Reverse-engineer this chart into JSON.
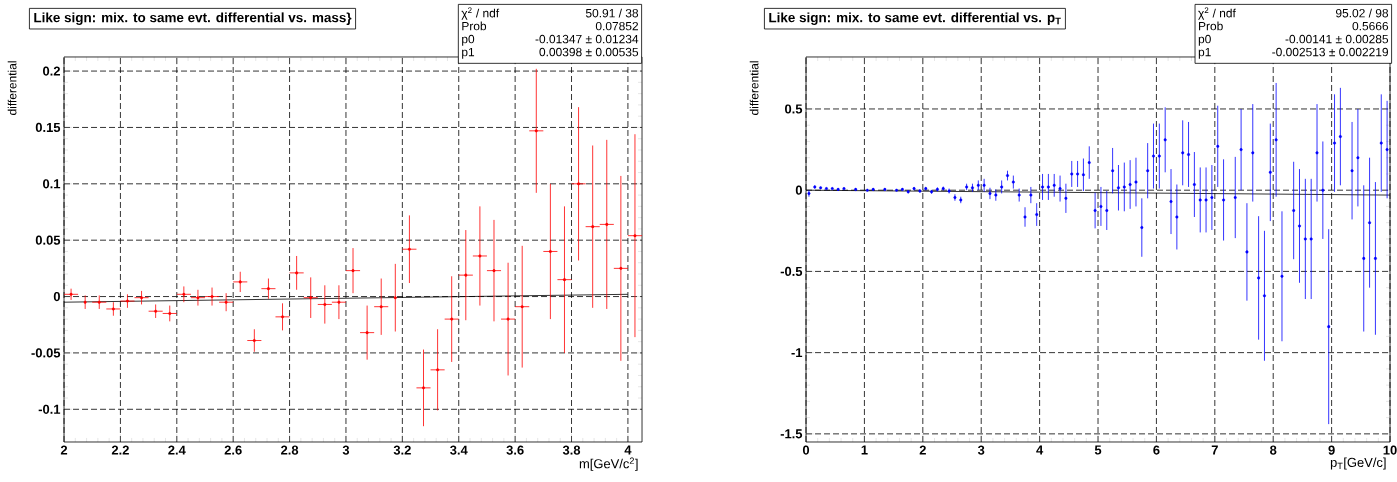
{
  "chart_data": [
    {
      "type": "scatter",
      "title": "Like sign: mix. to same evt. differential vs. mass}",
      "xlabel": "m[GeV/c$^{2}$]",
      "ylabel": "differential",
      "xlim": [
        2,
        4.05
      ],
      "ylim": [
        -0.129,
        0.2125
      ],
      "xticks": [
        2,
        2.2,
        2.4,
        2.6,
        2.8,
        3,
        3.2,
        3.4,
        3.6,
        3.8,
        4
      ],
      "yticks": [
        -0.1,
        -0.05,
        0,
        0.05,
        0.1,
        0.15,
        0.2
      ],
      "grid": true,
      "annotations": [
        "χ$^{2}$ / ndf",
        "50.91 / 38",
        "Prob",
        "0.07852",
        "p0",
        "-0.01347 ± 0.01234",
        "p1",
        "0.00398 ± 0.00535"
      ],
      "series": [
        {
          "type": "scatter",
          "color": "#ff0000",
          "marker": "circle",
          "x": [
            2.025,
            2.075,
            2.125,
            2.175,
            2.225,
            2.275,
            2.325,
            2.375,
            2.425,
            2.475,
            2.525,
            2.575,
            2.625,
            2.675,
            2.725,
            2.775,
            2.825,
            2.875,
            2.925,
            2.975,
            3.025,
            3.075,
            3.125,
            3.175,
            3.225,
            3.275,
            3.325,
            3.375,
            3.425,
            3.475,
            3.525,
            3.575,
            3.625,
            3.675,
            3.725,
            3.775,
            3.825,
            3.875,
            3.925,
            3.975,
            4.025
          ],
          "values": [
            0.002,
            -0.005,
            -0.005,
            -0.011,
            -0.004,
            -0.001,
            -0.013,
            -0.015,
            0.002,
            -0.001,
            0,
            -0.005,
            0.013,
            -0.039,
            0.007,
            -0.018,
            0.021,
            -0.001,
            -0.007,
            -0.005,
            0.023,
            -0.032,
            -0.009,
            -0.001,
            0.042,
            -0.081,
            -0.065,
            -0.02,
            0.019,
            0.036,
            0.023,
            -0.02,
            -0.009,
            0.147,
            0.04,
            0.015,
            0.1,
            0.062,
            0.064,
            0.025,
            0.054
          ],
          "errors": [
            0.005,
            0.006,
            0.006,
            0.006,
            0.006,
            0.006,
            0.006,
            0.007,
            0.007,
            0.007,
            0.008,
            0.008,
            0.009,
            0.01,
            0.009,
            0.012,
            0.015,
            0.018,
            0.017,
            0.015,
            0.02,
            0.024,
            0.025,
            0.03,
            0.03,
            0.034,
            0.036,
            0.038,
            0.04,
            0.044,
            0.045,
            0.05,
            0.054,
            0.055,
            0.06,
            0.065,
            0.068,
            0.072,
            0.075,
            0.082,
            0.09
          ],
          "xerrors": [
            0.025,
            null,
            0.025,
            0.025,
            0.025,
            0.025,
            0.025,
            0.025,
            0.025,
            0.025,
            0.025,
            0.025,
            0.025,
            0.025,
            0.025,
            0.025,
            0.025,
            0.025,
            0.025,
            0.025,
            0.025,
            0.025,
            0.025,
            null,
            0.025,
            0.025,
            0.025,
            0.025,
            0.025,
            0.025,
            0.025,
            0.025,
            0.025,
            0.025,
            0.025,
            0.025,
            0.025,
            0.025,
            0.025,
            0.025,
            0.025
          ]
        },
        {
          "type": "line",
          "color": "#000000",
          "line_style": "solid",
          "x": [
            2,
            4
          ],
          "values": [
            -0.005,
            0.002
          ]
        }
      ]
    },
    {
      "type": "scatter",
      "title": "Like sign: mix. to same evt. differential vs. p$_{T}$",
      "xlabel": "p$_{T}$[GeV/c]",
      "ylabel": "differential",
      "xlim": [
        0,
        10
      ],
      "ylim": [
        -1.55,
        0.82
      ],
      "xticks": [
        0,
        1,
        2,
        3,
        4,
        5,
        6,
        7,
        8,
        9,
        10
      ],
      "yticks": [
        -1.5,
        -1,
        -0.5,
        0,
        0.5
      ],
      "grid": true,
      "annotations": [
        "χ$^{2}$ / ndf",
        "95.02 / 98",
        "Prob",
        "0.5666",
        "p0",
        "-0.00141 ± 0.00285",
        "p1",
        "-0.002513 ± 0.002219"
      ],
      "series": [
        {
          "type": "scatter",
          "color": "#0000ff",
          "marker": "circle",
          "x": [
            0.05,
            0.15,
            0.25,
            0.35,
            0.45,
            0.55,
            0.65,
            0.85,
            1.05,
            1.15,
            1.35,
            1.55,
            1.65,
            1.75,
            1.85,
            1.95,
            2.05,
            2.15,
            2.25,
            2.35,
            2.45,
            2.55,
            2.65,
            2.75,
            2.85,
            2.95,
            3.05,
            3.15,
            3.25,
            3.35,
            3.45,
            3.55,
            3.65,
            3.75,
            3.85,
            3.95,
            4.05,
            4.15,
            4.25,
            4.35,
            4.45,
            4.55,
            4.65,
            4.75,
            4.85,
            4.95,
            5.05,
            5.15,
            5.25,
            5.35,
            5.45,
            5.55,
            5.65,
            5.75,
            5.85,
            5.95,
            6.05,
            6.15,
            6.25,
            6.35,
            6.45,
            6.55,
            6.65,
            6.75,
            6.85,
            6.95,
            7.05,
            7.15,
            7.35,
            7.45,
            7.55,
            7.65,
            7.75,
            7.85,
            7.95,
            8.05,
            8.15,
            8.35,
            8.45,
            8.55,
            8.65,
            8.75,
            8.85,
            8.95,
            9.05,
            9.15,
            9.35,
            9.45,
            9.55,
            9.65,
            9.75,
            9.85,
            9.95
          ],
          "values": [
            -0.02,
            0.02,
            0.015,
            0.01,
            0.01,
            0.005,
            0.01,
            0.005,
            0,
            0.005,
            0.005,
            0,
            0.005,
            -0.01,
            0.01,
            -0.005,
            0.01,
            -0.01,
            0.005,
            0.01,
            -0.005,
            -0.045,
            -0.06,
            0.02,
            0.015,
            0.03,
            0.03,
            -0.02,
            -0.03,
            0.02,
            0.09,
            0.05,
            -0.03,
            -0.165,
            -0.03,
            -0.15,
            0.02,
            0.02,
            0.03,
            0.01,
            -0.05,
            0.1,
            0.1,
            0.095,
            0.17,
            -0.125,
            -0.1,
            -0.125,
            0.12,
            0.015,
            0.02,
            0.035,
            0.05,
            -0.23,
            0.12,
            0.21,
            0.21,
            0.31,
            -0.07,
            -0.165,
            0.23,
            0.22,
            0.035,
            -0.06,
            -0.06,
            -0.045,
            0.27,
            -0.06,
            -0.045,
            0.25,
            -0.38,
            0.23,
            -0.54,
            -0.65,
            0.11,
            0.31,
            -0.53,
            -0.125,
            -0.22,
            -0.3,
            -0.3,
            0.23,
            0,
            -0.84,
            0.29,
            0.33,
            0.12,
            0.2,
            -0.42,
            -0.2,
            -0.42,
            0.29,
            0.25
          ],
          "errors": [
            0.02,
            0.01,
            null,
            null,
            null,
            null,
            null,
            null,
            null,
            null,
            null,
            null,
            null,
            0.01,
            0.01,
            0.01,
            0.01,
            0.012,
            0.012,
            0.012,
            0.015,
            0.02,
            0.02,
            0.02,
            0.025,
            0.03,
            0.04,
            0.035,
            0.035,
            0.04,
            0.03,
            0.04,
            0.04,
            0.06,
            0.05,
            0.07,
            0.08,
            0.08,
            0.07,
            0.08,
            0.09,
            0.08,
            0.08,
            0.1,
            0.1,
            0.11,
            0.12,
            0.12,
            0.14,
            0.14,
            0.15,
            0.15,
            0.15,
            0.18,
            0.17,
            0.2,
            0.2,
            0.2,
            0.2,
            0.2,
            0.2,
            0.2,
            0.2,
            0.2,
            0.2,
            0.2,
            0.25,
            0.25,
            0.25,
            0.25,
            0.3,
            0.3,
            0.38,
            0.4,
            0.3,
            0.35,
            0.4,
            0.3,
            0.35,
            0.37,
            0.37,
            0.3,
            0.3,
            0.6,
            0.3,
            0.3,
            0.3,
            0.3,
            0.45,
            0.4,
            0.47,
            0.3,
            0.3
          ]
        },
        {
          "type": "line",
          "color": "#000000",
          "line_style": "solid",
          "x": [
            0,
            10
          ],
          "values": [
            0,
            -0.03
          ]
        }
      ]
    }
  ]
}
